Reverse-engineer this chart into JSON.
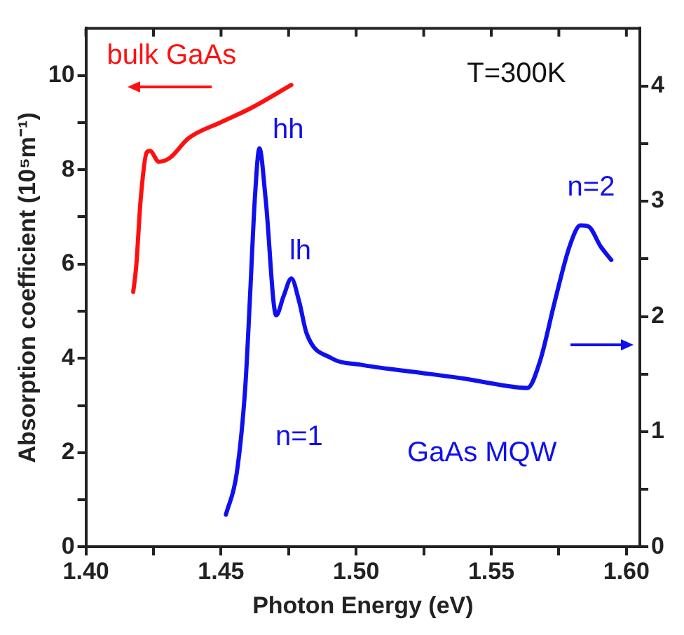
{
  "chart_data": {
    "type": "line",
    "xlabel": "Photon Energy (eV)",
    "ylabel": "Absorption coefficient (10⁵m⁻¹)",
    "xlim": [
      1.4,
      1.605
    ],
    "xticks": [
      {
        "value": 1.4,
        "label": "1.40"
      },
      {
        "value": 1.425,
        "label": null
      },
      1.45,
      {
        "value": 1.475,
        "label": null
      },
      {
        "value": 1.5,
        "label": "1.50"
      },
      {
        "value": 1.525,
        "label": null
      },
      1.55,
      {
        "value": 1.575,
        "label": null
      },
      {
        "value": 1.6,
        "label": "1.60"
      }
    ],
    "ylim": [
      0,
      11
    ],
    "yticks": [
      0,
      {
        "value": 1,
        "label": null
      },
      2,
      {
        "value": 3,
        "label": null
      },
      4,
      {
        "value": 5,
        "label": null
      },
      6,
      {
        "value": 7,
        "label": null
      },
      8,
      {
        "value": 9,
        "label": null
      },
      10
    ],
    "y2lim": [
      0,
      4.5
    ],
    "y2ticks": [
      0,
      {
        "value": 0.5,
        "label": null
      },
      1,
      {
        "value": 1.5,
        "label": null
      },
      2,
      {
        "value": 2.5,
        "label": null
      },
      3,
      {
        "value": 3.5,
        "label": null
      },
      4
    ],
    "tick_labels": "xy",
    "grid": false,
    "legend": false,
    "marker": "none",
    "line_style": "solid",
    "series": [
      {
        "name": "bulk GaAs",
        "color": "#ff1010",
        "x": [
          1.4175,
          1.4186,
          1.4203,
          1.4225,
          1.4237,
          1.427,
          1.431,
          1.438,
          1.4496,
          1.4608,
          1.476
        ],
        "values": [
          5.41,
          5.95,
          7.4,
          8.37,
          8.4,
          8.17,
          8.25,
          8.67,
          9.0,
          9.3,
          9.8
        ]
      },
      {
        "name": "GaAs MQW",
        "color": "#1010ee",
        "axis": "y2",
        "x": [
          1.4518,
          1.4558,
          1.459,
          1.4608,
          1.4625,
          1.4642,
          1.4665,
          1.4704,
          1.4732,
          1.476,
          1.4789,
          1.4817,
          1.4907,
          1.502,
          1.521,
          1.54,
          1.555,
          1.5634,
          1.568,
          1.5735,
          1.579,
          1.583,
          1.586,
          1.5904,
          1.5944
        ],
        "values": [
          0.28,
          0.64,
          1.4,
          2.21,
          3.02,
          3.46,
          3.02,
          2.01,
          2.18,
          2.33,
          2.13,
          1.85,
          1.64,
          1.58,
          1.52,
          1.46,
          1.4,
          1.38,
          1.61,
          2.13,
          2.61,
          2.79,
          2.78,
          2.61,
          2.49
        ]
      }
    ],
    "annotations": [
      "T=300K",
      "hh",
      "lh",
      "n=1",
      "n=2"
    ]
  }
}
